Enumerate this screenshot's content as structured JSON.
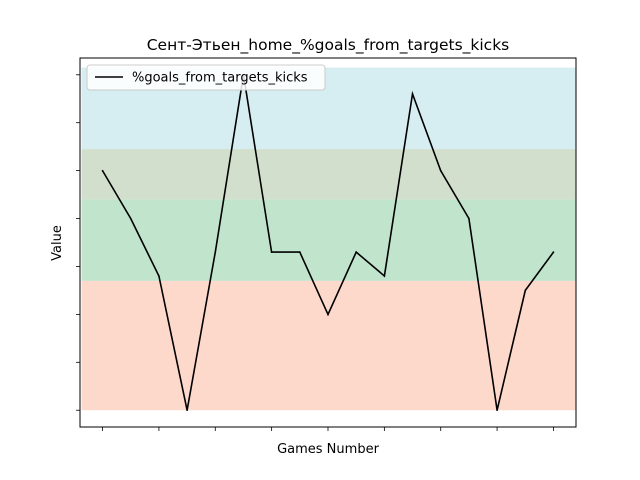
{
  "chart_data": {
    "type": "line",
    "title": "Сент-Этьен_home_%goals_from_targets_kicks",
    "xlabel": "Games Number",
    "ylabel": "Value",
    "tick_labels_visible": false,
    "grid": false,
    "legend_position": "top-left",
    "series": [
      {
        "name": "%goals_from_targets_kicks",
        "color": "#000000",
        "x": [
          1,
          2,
          3,
          4,
          5,
          6,
          7,
          8,
          9,
          10,
          11,
          12,
          13,
          14,
          15,
          16,
          17
        ],
        "values": [
          50,
          40,
          28,
          0,
          33,
          70,
          33,
          33,
          20,
          33,
          28,
          66,
          50,
          40,
          0,
          25,
          33
        ]
      }
    ],
    "xlim": [
      0.2,
      17.8
    ],
    "ylim": [
      -3.5,
      73.5
    ],
    "bands": [
      {
        "from": 0,
        "to": 27,
        "color": "#fdd9cc"
      },
      {
        "from": 27,
        "to": 44,
        "color": "#c0e4cc"
      },
      {
        "from": 44,
        "to": 54.5,
        "color": "#d3dfcd"
      },
      {
        "from": 54.5,
        "to": 71.5,
        "color": "#d6edf2"
      }
    ]
  }
}
